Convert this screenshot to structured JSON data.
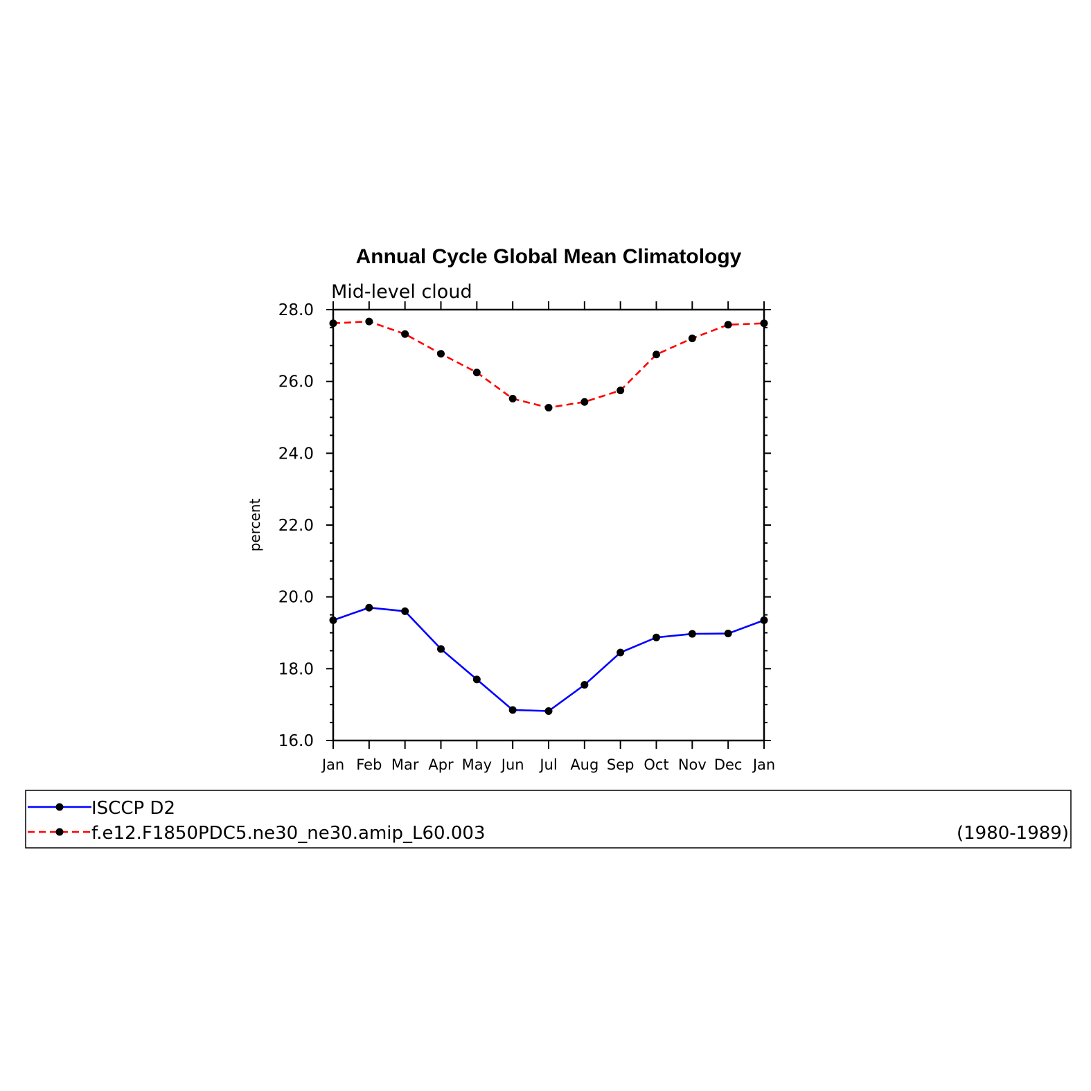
{
  "chart_data": {
    "type": "line",
    "title": "Annual Cycle Global Mean Climatology",
    "subtitle": "Mid-level cloud",
    "xlabel": "",
    "ylabel": "percent",
    "ylim": [
      16.0,
      28.0
    ],
    "yticks": [
      "16.0",
      "18.0",
      "20.0",
      "22.0",
      "24.0",
      "26.0",
      "28.0"
    ],
    "ytick_values": [
      16,
      18,
      20,
      22,
      24,
      26,
      28
    ],
    "categories": [
      "Jan",
      "Feb",
      "Mar",
      "Apr",
      "May",
      "Jun",
      "Jul",
      "Aug",
      "Sep",
      "Oct",
      "Nov",
      "Dec",
      "Jan"
    ],
    "grid": false,
    "legend_position": "bottom",
    "series": [
      {
        "name": "ISCCP D2",
        "color": "#0000ff",
        "dash": "solid",
        "marker": "dot",
        "values": [
          19.35,
          19.7,
          19.6,
          18.55,
          17.7,
          16.85,
          16.82,
          17.55,
          18.45,
          18.87,
          18.97,
          18.98,
          19.35
        ]
      },
      {
        "name": "f.e12.F1850PDC5.ne30_ne30.amip_L60.003",
        "color": "#ff0000",
        "dash": "dashed",
        "marker": "dot",
        "values": [
          27.62,
          27.67,
          27.32,
          26.77,
          26.25,
          25.52,
          25.27,
          25.43,
          25.75,
          26.75,
          27.2,
          27.58,
          27.62
        ]
      }
    ],
    "legend_note": "(1980-1989)"
  }
}
